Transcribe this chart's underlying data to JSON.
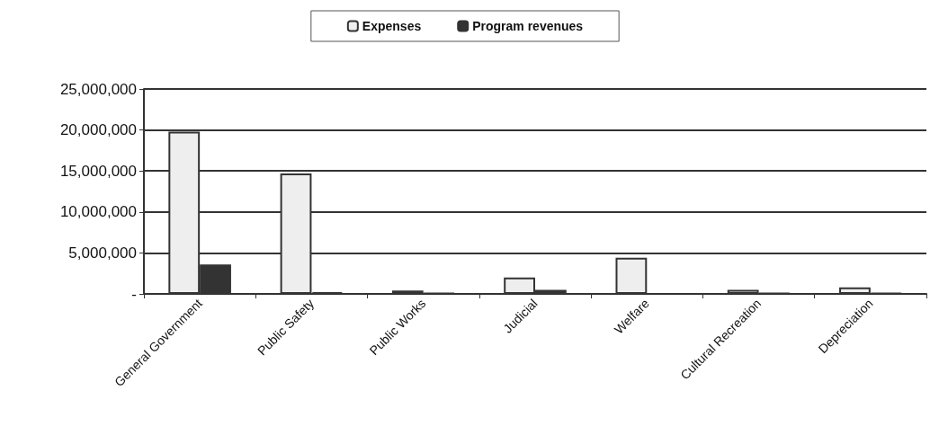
{
  "chart_data": {
    "type": "bar",
    "categories": [
      "General Government",
      "Public Safety",
      "Public Works",
      "Judicial",
      "Welfare",
      "Cultural Recreation",
      "Depreciation"
    ],
    "series": [
      {
        "name": "Expenses",
        "color": "#eeeeee",
        "values": [
          19800000,
          14700000,
          400000,
          2000000,
          4400000,
          500000,
          800000
        ]
      },
      {
        "name": "Program revenues",
        "color": "#333333",
        "values": [
          3600000,
          200000,
          100000,
          500000,
          0,
          100000,
          100000
        ]
      }
    ],
    "ylim": [
      0,
      25000000
    ],
    "yticks": [
      {
        "value": 0,
        "label": "-"
      },
      {
        "value": 5000000,
        "label": "5,000,000"
      },
      {
        "value": 10000000,
        "label": "10,000,000"
      },
      {
        "value": 15000000,
        "label": "15,000,000"
      },
      {
        "value": 20000000,
        "label": "20,000,000"
      },
      {
        "value": 25000000,
        "label": "25,000,000"
      }
    ],
    "grid": "y",
    "legend": "top"
  }
}
